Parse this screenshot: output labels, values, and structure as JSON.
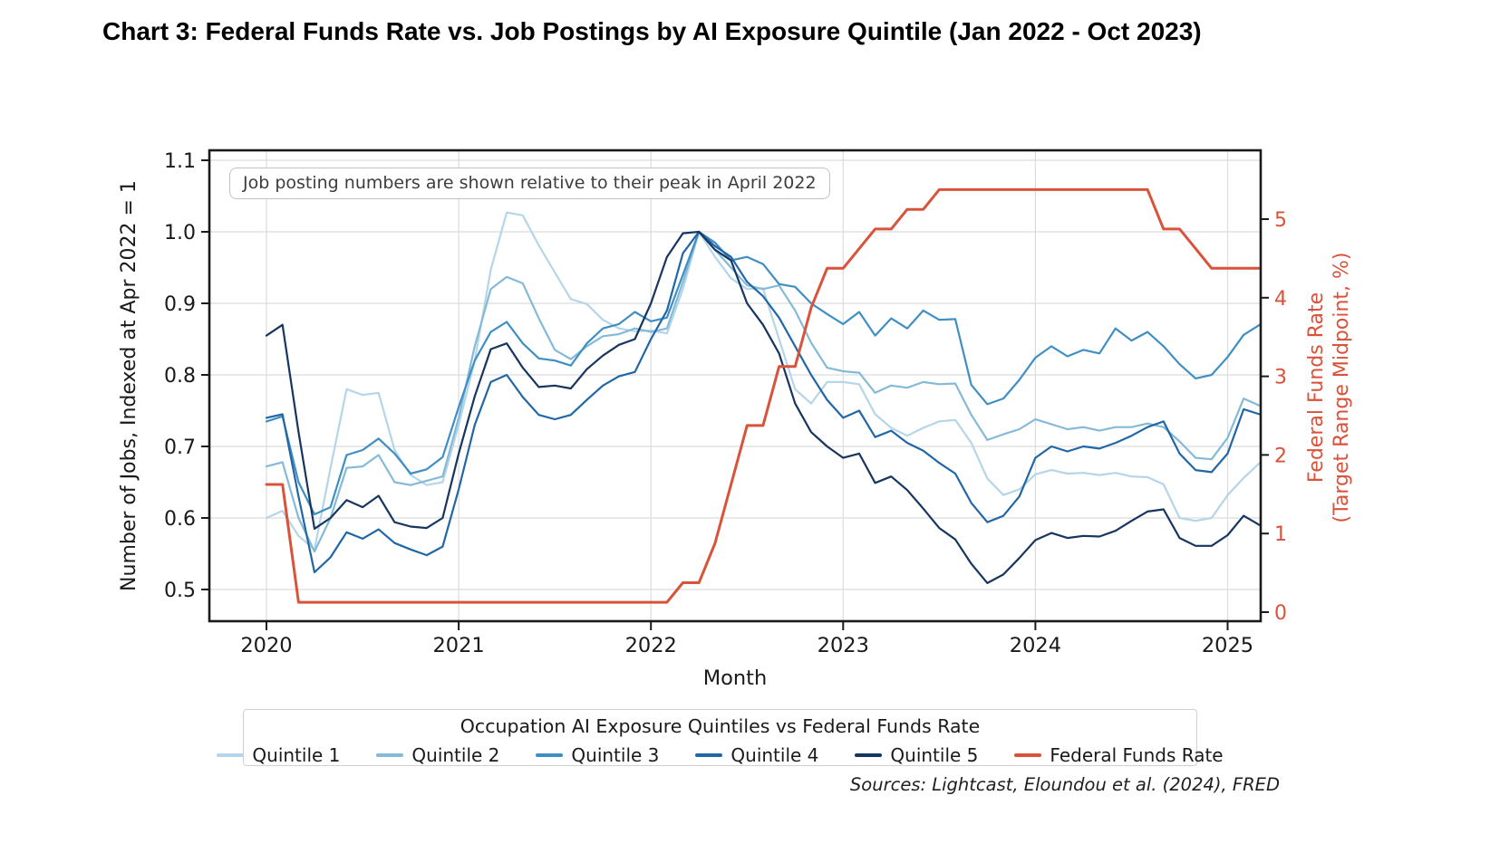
{
  "title": "Chart 3: Federal Funds Rate vs. Job Postings by AI Exposure Quintile (Jan 2022 - Oct 2023)",
  "annotation": "Job posting numbers are shown relative to their peak in April 2022",
  "sources": "Sources: Lightcast, Eloundou et al. (2024), FRED",
  "chart_data": {
    "type": "line",
    "x_start": "2020-01",
    "x_end": "2025-03",
    "x_frequency": "monthly",
    "xlabel": "Month",
    "grid": true,
    "x_ticks": {
      "labels": [
        "2020",
        "2021",
        "2022",
        "2023",
        "2024",
        "2025"
      ],
      "month_indices": [
        0,
        12,
        24,
        36,
        48,
        60
      ]
    },
    "left_axis": {
      "label": "Number of Jobs, Indexed at Apr 2022 = 1",
      "ticks": [
        1.1,
        1.0,
        0.9,
        0.8,
        0.7,
        0.6,
        0.5
      ],
      "range": [
        0.45,
        1.11
      ],
      "color": "#1a1a1a"
    },
    "right_axis": {
      "label_line1": "Federal Funds Rate",
      "label_line2": "(Target Range Midpoint, %)",
      "ticks": [
        0,
        1,
        2,
        3,
        4,
        5
      ],
      "range": [
        0,
        5.9
      ],
      "color": "#d9523a"
    },
    "legend": {
      "title": "Occupation AI Exposure Quintiles vs Federal Funds Rate",
      "position": "bottom"
    },
    "series": [
      {
        "name": "Quintile 1",
        "axis": "left",
        "color": "#b5d5e8",
        "width": 2.2,
        "values": [
          0.6,
          0.61,
          0.575,
          0.556,
          0.67,
          0.78,
          0.772,
          0.775,
          0.695,
          0.66,
          0.646,
          0.65,
          0.73,
          0.82,
          0.947,
          1.027,
          1.023,
          0.981,
          0.943,
          0.906,
          0.899,
          0.877,
          0.865,
          0.861,
          0.862,
          0.858,
          0.92,
          1.0,
          0.965,
          0.935,
          0.92,
          0.921,
          0.85,
          0.78,
          0.76,
          0.79,
          0.79,
          0.787,
          0.745,
          0.726,
          0.715,
          0.726,
          0.735,
          0.737,
          0.705,
          0.655,
          0.632,
          0.64,
          0.661,
          0.667,
          0.662,
          0.663,
          0.66,
          0.663,
          0.658,
          0.657,
          0.647,
          0.6,
          0.596,
          0.6,
          0.632,
          0.656,
          0.677
        ]
      },
      {
        "name": "Quintile 2",
        "axis": "left",
        "color": "#84bad8",
        "width": 2.2,
        "values": [
          0.672,
          0.678,
          0.6,
          0.553,
          0.6,
          0.67,
          0.672,
          0.688,
          0.65,
          0.646,
          0.652,
          0.658,
          0.74,
          0.84,
          0.92,
          0.937,
          0.928,
          0.879,
          0.835,
          0.822,
          0.84,
          0.854,
          0.857,
          0.865,
          0.86,
          0.865,
          0.93,
          1.0,
          0.975,
          0.95,
          0.925,
          0.92,
          0.925,
          0.89,
          0.845,
          0.81,
          0.805,
          0.803,
          0.775,
          0.785,
          0.782,
          0.79,
          0.787,
          0.788,
          0.744,
          0.709,
          0.717,
          0.724,
          0.738,
          0.731,
          0.724,
          0.727,
          0.722,
          0.727,
          0.727,
          0.732,
          0.727,
          0.707,
          0.684,
          0.682,
          0.712,
          0.767,
          0.757
        ]
      },
      {
        "name": "Quintile 3",
        "axis": "left",
        "color": "#3f8ec4",
        "width": 2.2,
        "values": [
          0.735,
          0.742,
          0.65,
          0.605,
          0.615,
          0.688,
          0.695,
          0.711,
          0.69,
          0.662,
          0.668,
          0.685,
          0.755,
          0.82,
          0.86,
          0.874,
          0.844,
          0.823,
          0.82,
          0.813,
          0.844,
          0.865,
          0.871,
          0.888,
          0.875,
          0.88,
          0.94,
          1.0,
          0.985,
          0.96,
          0.965,
          0.955,
          0.927,
          0.923,
          0.9,
          0.885,
          0.871,
          0.888,
          0.855,
          0.879,
          0.865,
          0.89,
          0.877,
          0.878,
          0.786,
          0.759,
          0.767,
          0.793,
          0.824,
          0.84,
          0.826,
          0.835,
          0.83,
          0.865,
          0.848,
          0.86,
          0.84,
          0.815,
          0.795,
          0.8,
          0.825,
          0.856,
          0.87
        ]
      },
      {
        "name": "Quintile 4",
        "axis": "left",
        "color": "#2166a5",
        "width": 2.2,
        "values": [
          0.74,
          0.745,
          0.63,
          0.524,
          0.545,
          0.58,
          0.571,
          0.584,
          0.565,
          0.556,
          0.548,
          0.56,
          0.64,
          0.73,
          0.79,
          0.8,
          0.769,
          0.744,
          0.738,
          0.744,
          0.765,
          0.785,
          0.798,
          0.804,
          0.85,
          0.89,
          0.97,
          1.0,
          0.98,
          0.965,
          0.93,
          0.91,
          0.88,
          0.84,
          0.8,
          0.765,
          0.74,
          0.75,
          0.713,
          0.722,
          0.705,
          0.694,
          0.677,
          0.662,
          0.621,
          0.594,
          0.603,
          0.63,
          0.684,
          0.7,
          0.693,
          0.7,
          0.697,
          0.705,
          0.715,
          0.727,
          0.735,
          0.69,
          0.667,
          0.664,
          0.69,
          0.752,
          0.745
        ]
      },
      {
        "name": "Quintile 5",
        "axis": "left",
        "color": "#16365f",
        "width": 2.2,
        "values": [
          0.855,
          0.87,
          0.72,
          0.585,
          0.6,
          0.625,
          0.615,
          0.631,
          0.594,
          0.588,
          0.586,
          0.6,
          0.69,
          0.77,
          0.836,
          0.844,
          0.81,
          0.783,
          0.785,
          0.781,
          0.808,
          0.827,
          0.842,
          0.85,
          0.9,
          0.965,
          0.998,
          1.0,
          0.975,
          0.96,
          0.9,
          0.87,
          0.83,
          0.76,
          0.72,
          0.7,
          0.684,
          0.69,
          0.649,
          0.658,
          0.639,
          0.613,
          0.586,
          0.57,
          0.536,
          0.509,
          0.521,
          0.544,
          0.569,
          0.579,
          0.572,
          0.575,
          0.574,
          0.582,
          0.596,
          0.609,
          0.612,
          0.572,
          0.561,
          0.561,
          0.576,
          0.603,
          0.59
        ]
      },
      {
        "name": "Federal Funds Rate",
        "axis": "right",
        "color": "#d9523a",
        "width": 3,
        "values": [
          1.625,
          1.625,
          0.125,
          0.125,
          0.125,
          0.125,
          0.125,
          0.125,
          0.125,
          0.125,
          0.125,
          0.125,
          0.125,
          0.125,
          0.125,
          0.125,
          0.125,
          0.125,
          0.125,
          0.125,
          0.125,
          0.125,
          0.125,
          0.125,
          0.125,
          0.125,
          0.375,
          0.375,
          0.875,
          1.625,
          2.375,
          2.375,
          3.125,
          3.125,
          3.875,
          4.375,
          4.375,
          4.625,
          4.875,
          4.875,
          5.125,
          5.125,
          5.375,
          5.375,
          5.375,
          5.375,
          5.375,
          5.375,
          5.375,
          5.375,
          5.375,
          5.375,
          5.375,
          5.375,
          5.375,
          5.375,
          4.875,
          4.875,
          4.625,
          4.375,
          4.375,
          4.375,
          4.375
        ]
      }
    ]
  }
}
